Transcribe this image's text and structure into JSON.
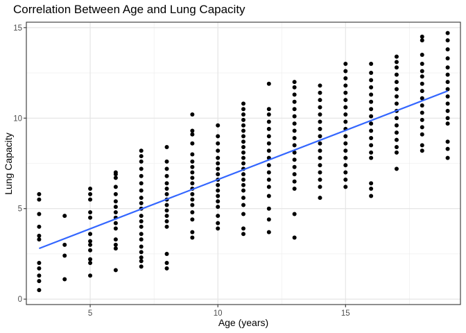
{
  "chart_data": {
    "type": "scatter",
    "title": "Correlation Between Age and Lung Capacity",
    "xlabel": "Age (years)",
    "ylabel": "Lung Capacity",
    "xlim": [
      2.5,
      19.5
    ],
    "ylim": [
      -0.3,
      15.3
    ],
    "x_ticks": [
      5,
      10,
      15
    ],
    "y_ticks": [
      0,
      5,
      10,
      15
    ],
    "grid": true,
    "point_color": "#000000",
    "line_color": "#3366ff",
    "trend_line": {
      "x": [
        3,
        19
      ],
      "y": [
        2.8,
        11.5
      ]
    },
    "points": [
      [
        3,
        0.5
      ],
      [
        3,
        1.0
      ],
      [
        3,
        1.3
      ],
      [
        3,
        1.7
      ],
      [
        3,
        2.0
      ],
      [
        3,
        3.3
      ],
      [
        3,
        3.5
      ],
      [
        3,
        4.0
      ],
      [
        3,
        4.7
      ],
      [
        3,
        5.5
      ],
      [
        3,
        5.8
      ],
      [
        4,
        1.1
      ],
      [
        4,
        2.4
      ],
      [
        4,
        3.0
      ],
      [
        4,
        4.6
      ],
      [
        5,
        1.3
      ],
      [
        5,
        2.0
      ],
      [
        5,
        2.2
      ],
      [
        5,
        2.7
      ],
      [
        5,
        3.0
      ],
      [
        5,
        3.2
      ],
      [
        5,
        3.6
      ],
      [
        5,
        4.5
      ],
      [
        5,
        4.8
      ],
      [
        5,
        5.5
      ],
      [
        5,
        5.8
      ],
      [
        5,
        6.1
      ],
      [
        6,
        1.6
      ],
      [
        6,
        2.8
      ],
      [
        6,
        3.0
      ],
      [
        6,
        3.3
      ],
      [
        6,
        3.9
      ],
      [
        6,
        4.2
      ],
      [
        6,
        4.5
      ],
      [
        6,
        4.8
      ],
      [
        6,
        5.1
      ],
      [
        6,
        5.4
      ],
      [
        6,
        5.8
      ],
      [
        6,
        6.2
      ],
      [
        6,
        6.7
      ],
      [
        6,
        6.9
      ],
      [
        6,
        7.0
      ],
      [
        7,
        1.8
      ],
      [
        7,
        2.1
      ],
      [
        7,
        2.3
      ],
      [
        7,
        2.6
      ],
      [
        7,
        2.9
      ],
      [
        7,
        3.3
      ],
      [
        7,
        3.6
      ],
      [
        7,
        4.0
      ],
      [
        7,
        4.3
      ],
      [
        7,
        4.6
      ],
      [
        7,
        5.0
      ],
      [
        7,
        5.3
      ],
      [
        7,
        5.6
      ],
      [
        7,
        6.0
      ],
      [
        7,
        6.4
      ],
      [
        7,
        6.8
      ],
      [
        7,
        7.2
      ],
      [
        7,
        7.6
      ],
      [
        7,
        7.9
      ],
      [
        7,
        8.2
      ],
      [
        8,
        1.7
      ],
      [
        8,
        2.0
      ],
      [
        8,
        2.5
      ],
      [
        8,
        4.0
      ],
      [
        8,
        4.3
      ],
      [
        8,
        4.6
      ],
      [
        8,
        4.9
      ],
      [
        8,
        5.2
      ],
      [
        8,
        5.5
      ],
      [
        8,
        5.8
      ],
      [
        8,
        6.1
      ],
      [
        8,
        6.4
      ],
      [
        8,
        6.8
      ],
      [
        8,
        7.2
      ],
      [
        8,
        7.6
      ],
      [
        8,
        8.4
      ],
      [
        9,
        3.4
      ],
      [
        9,
        3.7
      ],
      [
        9,
        4.4
      ],
      [
        9,
        4.8
      ],
      [
        9,
        5.2
      ],
      [
        9,
        5.5
      ],
      [
        9,
        5.8
      ],
      [
        9,
        6.1
      ],
      [
        9,
        6.4
      ],
      [
        9,
        6.7
      ],
      [
        9,
        7.0
      ],
      [
        9,
        7.3
      ],
      [
        9,
        7.6
      ],
      [
        9,
        8.0
      ],
      [
        9,
        8.6
      ],
      [
        9,
        9.1
      ],
      [
        9,
        9.3
      ],
      [
        9,
        10.2
      ],
      [
        10,
        3.9
      ],
      [
        10,
        4.2
      ],
      [
        10,
        4.6
      ],
      [
        10,
        5.1
      ],
      [
        10,
        5.4
      ],
      [
        10,
        5.7
      ],
      [
        10,
        6.0
      ],
      [
        10,
        6.3
      ],
      [
        10,
        6.6
      ],
      [
        10,
        6.9
      ],
      [
        10,
        7.2
      ],
      [
        10,
        7.5
      ],
      [
        10,
        7.8
      ],
      [
        10,
        8.2
      ],
      [
        10,
        8.6
      ],
      [
        10,
        9.0
      ],
      [
        10,
        9.6
      ],
      [
        11,
        3.6
      ],
      [
        11,
        3.9
      ],
      [
        11,
        4.7
      ],
      [
        11,
        5.2
      ],
      [
        11,
        5.6
      ],
      [
        11,
        6.0
      ],
      [
        11,
        6.3
      ],
      [
        11,
        6.6
      ],
      [
        11,
        6.9
      ],
      [
        11,
        7.2
      ],
      [
        11,
        7.5
      ],
      [
        11,
        7.8
      ],
      [
        11,
        8.1
      ],
      [
        11,
        8.4
      ],
      [
        11,
        8.7
      ],
      [
        11,
        9.0
      ],
      [
        11,
        9.3
      ],
      [
        11,
        9.6
      ],
      [
        11,
        9.9
      ],
      [
        11,
        10.2
      ],
      [
        11,
        10.5
      ],
      [
        11,
        10.8
      ],
      [
        12,
        3.7
      ],
      [
        12,
        4.4
      ],
      [
        12,
        5.0
      ],
      [
        12,
        5.7
      ],
      [
        12,
        6.2
      ],
      [
        12,
        6.6
      ],
      [
        12,
        7.0
      ],
      [
        12,
        7.4
      ],
      [
        12,
        7.8
      ],
      [
        12,
        8.2
      ],
      [
        12,
        8.6
      ],
      [
        12,
        9.0
      ],
      [
        12,
        9.4
      ],
      [
        12,
        9.8
      ],
      [
        12,
        10.2
      ],
      [
        12,
        10.5
      ],
      [
        12,
        11.9
      ],
      [
        13,
        3.4
      ],
      [
        13,
        4.7
      ],
      [
        13,
        6.1
      ],
      [
        13,
        6.5
      ],
      [
        13,
        6.9
      ],
      [
        13,
        7.3
      ],
      [
        13,
        7.7
      ],
      [
        13,
        8.1
      ],
      [
        13,
        8.5
      ],
      [
        13,
        8.9
      ],
      [
        13,
        9.3
      ],
      [
        13,
        9.7
      ],
      [
        13,
        10.1
      ],
      [
        13,
        10.5
      ],
      [
        13,
        10.9
      ],
      [
        13,
        11.3
      ],
      [
        13,
        11.7
      ],
      [
        13,
        12.0
      ],
      [
        14,
        5.6
      ],
      [
        14,
        6.2
      ],
      [
        14,
        6.6
      ],
      [
        14,
        7.0
      ],
      [
        14,
        7.4
      ],
      [
        14,
        7.8
      ],
      [
        14,
        8.2
      ],
      [
        14,
        8.6
      ],
      [
        14,
        9.0
      ],
      [
        14,
        9.4
      ],
      [
        14,
        9.8
      ],
      [
        14,
        10.2
      ],
      [
        14,
        10.6
      ],
      [
        14,
        11.0
      ],
      [
        14,
        11.4
      ],
      [
        14,
        11.8
      ],
      [
        15,
        6.2
      ],
      [
        15,
        6.6
      ],
      [
        15,
        7.0
      ],
      [
        15,
        7.4
      ],
      [
        15,
        7.8
      ],
      [
        15,
        8.2
      ],
      [
        15,
        8.6
      ],
      [
        15,
        9.0
      ],
      [
        15,
        9.4
      ],
      [
        15,
        9.8
      ],
      [
        15,
        10.2
      ],
      [
        15,
        10.6
      ],
      [
        15,
        11.0
      ],
      [
        15,
        11.4
      ],
      [
        15,
        11.8
      ],
      [
        15,
        12.2
      ],
      [
        15,
        12.6
      ],
      [
        15,
        13.0
      ],
      [
        16,
        5.7
      ],
      [
        16,
        6.1
      ],
      [
        16,
        6.4
      ],
      [
        16,
        7.8
      ],
      [
        16,
        8.1
      ],
      [
        16,
        8.5
      ],
      [
        16,
        8.9
      ],
      [
        16,
        9.3
      ],
      [
        16,
        9.7
      ],
      [
        16,
        10.1
      ],
      [
        16,
        10.5
      ],
      [
        16,
        10.9
      ],
      [
        16,
        11.3
      ],
      [
        16,
        11.7
      ],
      [
        16,
        12.1
      ],
      [
        16,
        12.5
      ],
      [
        16,
        13.0
      ],
      [
        17,
        7.2
      ],
      [
        17,
        8.1
      ],
      [
        17,
        8.4
      ],
      [
        17,
        8.8
      ],
      [
        17,
        9.2
      ],
      [
        17,
        9.6
      ],
      [
        17,
        10.0
      ],
      [
        17,
        10.4
      ],
      [
        17,
        10.8
      ],
      [
        17,
        11.2
      ],
      [
        17,
        11.6
      ],
      [
        17,
        12.0
      ],
      [
        17,
        12.4
      ],
      [
        17,
        12.8
      ],
      [
        17,
        13.1
      ],
      [
        17,
        13.4
      ],
      [
        18,
        8.2
      ],
      [
        18,
        8.5
      ],
      [
        18,
        9.1
      ],
      [
        18,
        9.5
      ],
      [
        18,
        9.9
      ],
      [
        18,
        10.3
      ],
      [
        18,
        10.7
      ],
      [
        18,
        11.1
      ],
      [
        18,
        11.5
      ],
      [
        18,
        11.9
      ],
      [
        18,
        12.3
      ],
      [
        18,
        12.6
      ],
      [
        18,
        13.0
      ],
      [
        18,
        13.5
      ],
      [
        18,
        14.3
      ],
      [
        18,
        14.5
      ],
      [
        19,
        7.8
      ],
      [
        19,
        8.3
      ],
      [
        19,
        8.7
      ],
      [
        19,
        9.7
      ],
      [
        19,
        10.0
      ],
      [
        19,
        10.4
      ],
      [
        19,
        10.8
      ],
      [
        19,
        11.2
      ],
      [
        19,
        11.6
      ],
      [
        19,
        12.0
      ],
      [
        19,
        12.4
      ],
      [
        19,
        12.8
      ],
      [
        19,
        13.3
      ],
      [
        19,
        13.8
      ],
      [
        19,
        14.3
      ],
      [
        19,
        14.7
      ]
    ]
  }
}
